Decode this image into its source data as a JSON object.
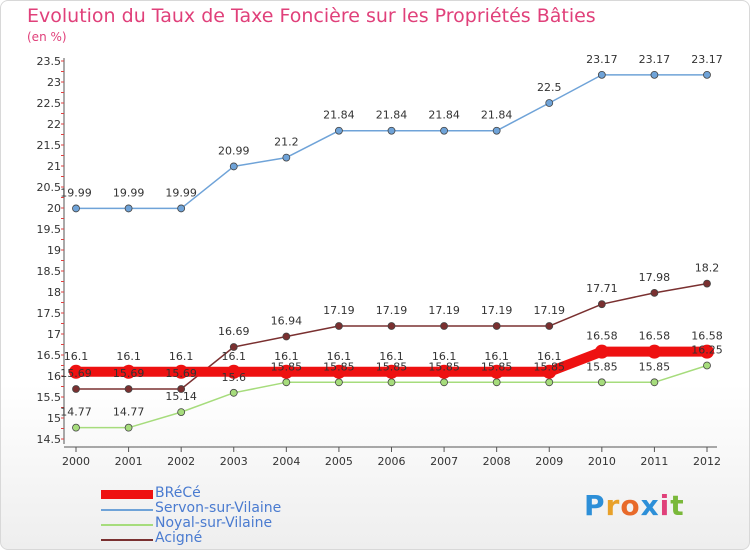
{
  "header": {
    "title": "Evolution du Taux de Taxe Foncière sur les Propriétés Bâties",
    "unit": "(en %)"
  },
  "brand": {
    "logo_text": "Proxiti"
  },
  "chart_data": {
    "type": "line",
    "title": "Evolution du Taux de Taxe Foncière sur les Propriétés Bâties",
    "ylabel": "(en %)",
    "xlabel": "",
    "x": [
      "2000",
      "2001",
      "2002",
      "2003",
      "2004",
      "2005",
      "2006",
      "2007",
      "2008",
      "2009",
      "2010",
      "2011",
      "2012"
    ],
    "ylim": [
      14.5,
      23.5
    ],
    "yticks": [
      "14.5",
      "15",
      "15.5",
      "16",
      "16.5",
      "17",
      "17.5",
      "18",
      "18.5",
      "19",
      "19.5",
      "20",
      "20.5",
      "21",
      "21.5",
      "22",
      "22.5",
      "23",
      "23.5"
    ],
    "grid": false,
    "legend_position": "bottom-left",
    "series": [
      {
        "name": "BRéCé",
        "color": "#ee1111",
        "values": [
          16.1,
          16.1,
          16.1,
          16.1,
          16.1,
          16.1,
          16.1,
          16.1,
          16.1,
          16.1,
          16.58,
          16.58,
          16.58
        ],
        "labels": [
          "16.1",
          "16.1",
          "16.1",
          "16.1",
          "16.1",
          "16.1",
          "16.1",
          "16.1",
          "16.1",
          "16.1",
          "16.58",
          "16.58",
          "16.58"
        ]
      },
      {
        "name": "Servon-sur-Vilaine",
        "color": "#6fa3d8",
        "values": [
          19.99,
          19.99,
          19.99,
          20.99,
          21.2,
          21.84,
          21.84,
          21.84,
          21.84,
          22.5,
          23.17,
          23.17,
          23.17
        ],
        "labels": [
          "19.99",
          "19.99",
          "19.99",
          "20.99",
          "21.2",
          "21.84",
          "21.84",
          "21.84",
          "21.84",
          "22.5",
          "23.17",
          "23.17",
          "23.17"
        ]
      },
      {
        "name": "Noyal-sur-Vilaine",
        "color": "#a6dc7c",
        "values": [
          14.77,
          14.77,
          15.14,
          15.6,
          15.85,
          15.85,
          15.85,
          15.85,
          15.85,
          15.85,
          15.85,
          15.85,
          16.25
        ],
        "labels": [
          "14.77",
          "14.77",
          "15.14",
          "15.6",
          "15.85",
          "15.85",
          "15.85",
          "15.85",
          "15.85",
          "15.85",
          "15.85",
          "15.85",
          "16.25"
        ]
      },
      {
        "name": "Acigné",
        "color": "#7a3030",
        "values": [
          15.69,
          15.69,
          15.69,
          16.69,
          16.94,
          17.19,
          17.19,
          17.19,
          17.19,
          17.19,
          17.71,
          17.98,
          18.2
        ],
        "labels": [
          "15.69",
          "15.69",
          "15.69",
          "16.69",
          "16.94",
          "17.19",
          "17.19",
          "17.19",
          "17.19",
          "17.19",
          "17.71",
          "17.98",
          "18.2"
        ]
      }
    ]
  }
}
